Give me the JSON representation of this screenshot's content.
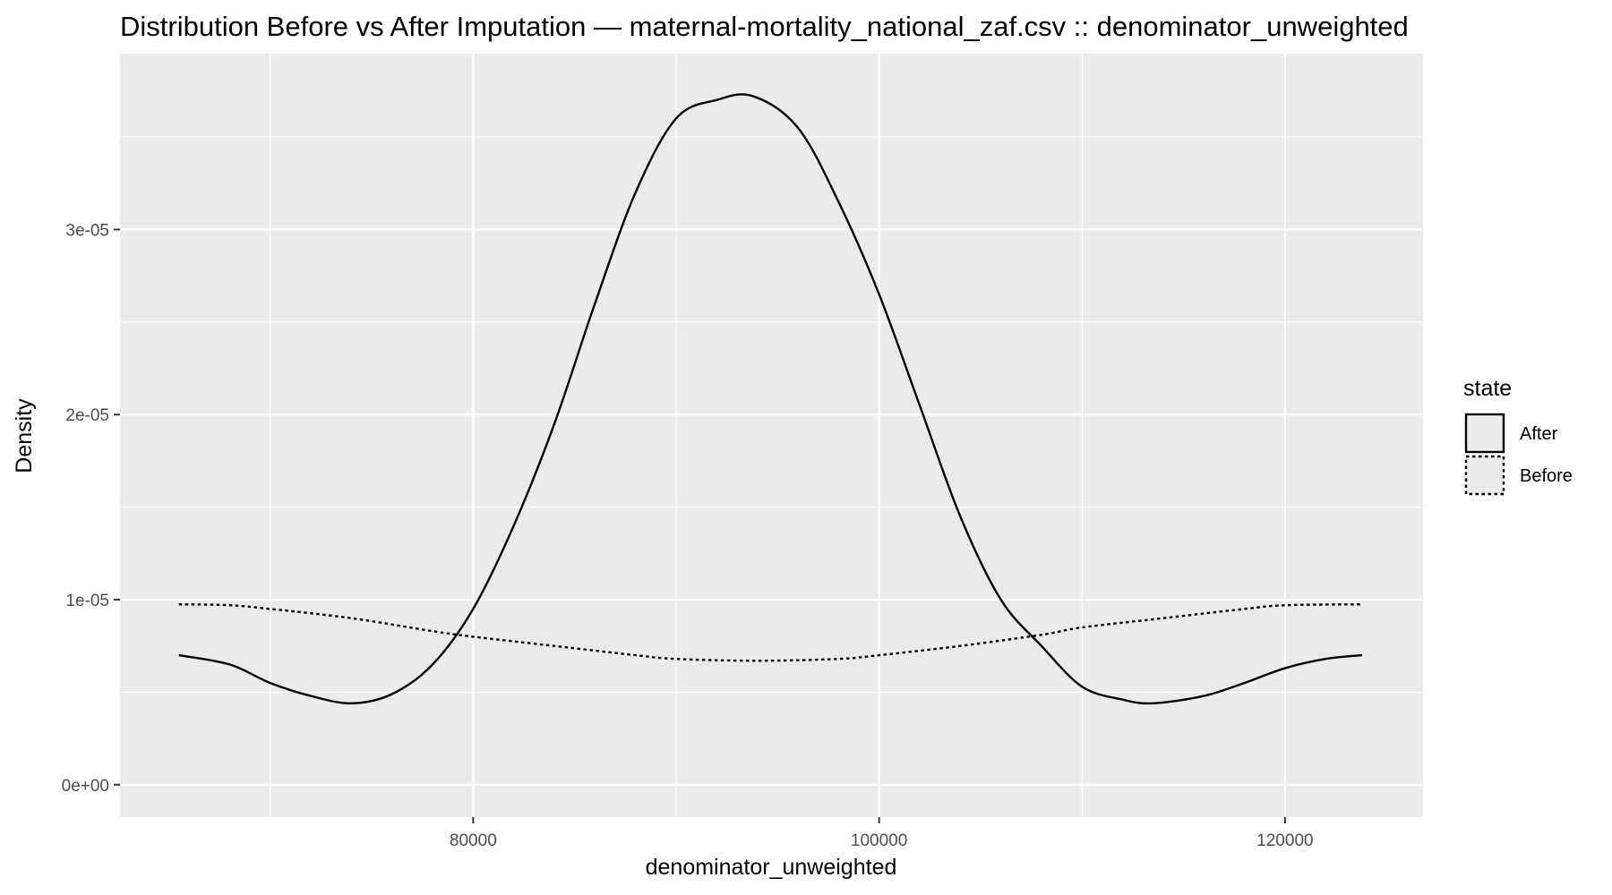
{
  "chart_data": {
    "type": "line",
    "title": "Distribution Before vs After Imputation — maternal-mortality_national_zaf.csv :: denominator_unweighted",
    "xlabel": "denominator_unweighted",
    "ylabel": "Density",
    "xlim": [
      62600,
      126800
    ],
    "ylim": [
      -1.75e-06,
      3.95e-05
    ],
    "x_ticks": [
      {
        "value": 80000,
        "label": "80000"
      },
      {
        "value": 100000,
        "label": "100000"
      },
      {
        "value": 120000,
        "label": "120000"
      }
    ],
    "y_ticks": [
      {
        "value": 0,
        "label": "0e+00"
      },
      {
        "value": 1e-05,
        "label": "1e-05"
      },
      {
        "value": 2e-05,
        "label": "2e-05"
      },
      {
        "value": 3e-05,
        "label": "3e-05"
      }
    ],
    "grid": true,
    "legend": {
      "title": "state",
      "position": "right"
    },
    "series": [
      {
        "name": "After",
        "line_style": "solid",
        "color": "#000000",
        "x": [
          65500,
          68000,
          70000,
          72000,
          74000,
          76000,
          78000,
          80000,
          82000,
          84000,
          86000,
          88000,
          90000,
          92000,
          93800,
          96000,
          98000,
          100000,
          102000,
          104000,
          106000,
          108000,
          110000,
          112000,
          113500,
          116000,
          118000,
          120000,
          122000,
          123800
        ],
        "y": [
          7e-06,
          6.5e-06,
          5.5e-06,
          4.8e-06,
          4.4e-06,
          4.9e-06,
          6.5e-06,
          9.5e-06,
          1.4e-05,
          1.95e-05,
          2.6e-05,
          3.2e-05,
          3.6e-05,
          3.7e-05,
          3.72e-05,
          3.55e-05,
          3.15e-05,
          2.65e-05,
          2.05e-05,
          1.45e-05,
          1e-05,
          7.5e-06,
          5.3e-06,
          4.6e-06,
          4.4e-06,
          4.8e-06,
          5.5e-06,
          6.3e-06,
          6.8e-06,
          7e-06
        ]
      },
      {
        "name": "Before",
        "line_style": "dotted",
        "color": "#000000",
        "x": [
          65500,
          68000,
          70000,
          74000,
          78000,
          80000,
          84000,
          88000,
          90000,
          94000,
          98000,
          100000,
          104000,
          108000,
          110000,
          114000,
          118000,
          120000,
          123800
        ],
        "y": [
          9.75e-06,
          9.7e-06,
          9.5e-06,
          9e-06,
          8.3e-06,
          8e-06,
          7.5e-06,
          7e-06,
          6.8e-06,
          6.7e-06,
          6.8e-06,
          7e-06,
          7.5e-06,
          8.1e-06,
          8.5e-06,
          9e-06,
          9.5e-06,
          9.7e-06,
          9.75e-06
        ]
      }
    ]
  }
}
